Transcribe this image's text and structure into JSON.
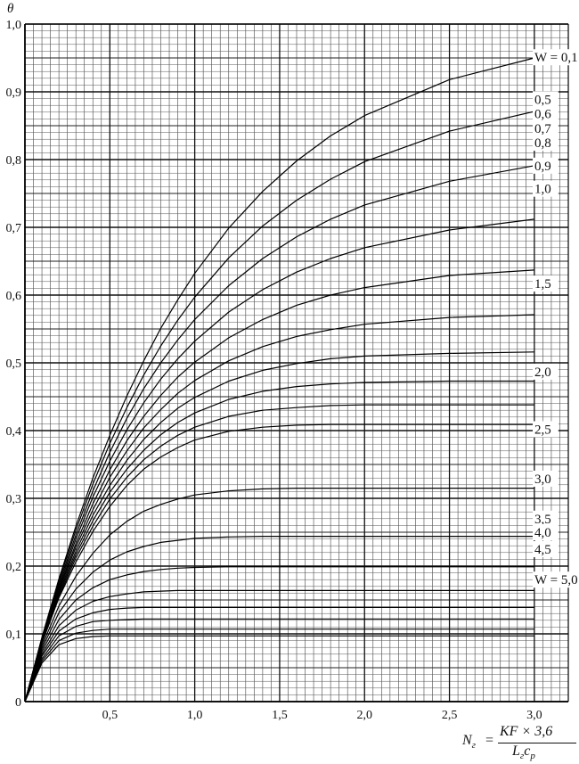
{
  "chart_data": {
    "type": "line",
    "ylabel": "θ",
    "xlabel": {
      "lhs": "N",
      "lhs_sub": "г",
      "equals": "=",
      "numerator": "KF × 3,6",
      "denominator": "L",
      "denominator_sub": "г",
      "denominator_tail": "c",
      "denominator_tail_sub": "p"
    },
    "xlim": [
      0,
      3.2
    ],
    "ylim": [
      0,
      1.0
    ],
    "x_ticks": [
      {
        "value": 0.5,
        "label": "0,5"
      },
      {
        "value": 1.0,
        "label": "1,0"
      },
      {
        "value": 1.5,
        "label": "1,5"
      },
      {
        "value": 2.0,
        "label": "2,0"
      },
      {
        "value": 2.5,
        "label": "2,5"
      },
      {
        "value": 3.0,
        "label": "3,0"
      }
    ],
    "y_ticks": [
      {
        "value": 0,
        "label": "0"
      },
      {
        "value": 0.1,
        "label": "0,1"
      },
      {
        "value": 0.2,
        "label": "0,2"
      },
      {
        "value": 0.3,
        "label": "0,3"
      },
      {
        "value": 0.4,
        "label": "0,4"
      },
      {
        "value": 0.5,
        "label": "0,5"
      },
      {
        "value": 0.6,
        "label": "0,6"
      },
      {
        "value": 0.7,
        "label": "0,7"
      },
      {
        "value": 0.8,
        "label": "0,8"
      },
      {
        "value": 0.9,
        "label": "0,9"
      },
      {
        "value": 1.0,
        "label": "1,0"
      }
    ],
    "grid": true,
    "series": [
      {
        "label": "W = 0,1",
        "label_y": 0.951,
        "x": [
          0,
          0.1,
          0.2,
          0.3,
          0.4,
          0.5,
          0.6,
          0.7,
          0.8,
          0.9,
          1.0,
          1.2,
          1.4,
          1.6,
          1.8,
          2.0,
          2.5,
          3.0
        ],
        "y": [
          0,
          0.095,
          0.181,
          0.259,
          0.33,
          0.393,
          0.451,
          0.503,
          0.551,
          0.593,
          0.632,
          0.699,
          0.753,
          0.798,
          0.835,
          0.865,
          0.918,
          0.95
        ]
      },
      {
        "x": [
          0,
          0.1,
          0.2,
          0.3,
          0.4,
          0.5,
          0.6,
          0.7,
          0.8,
          0.9,
          1.0,
          1.2,
          1.4,
          1.6,
          1.8,
          2.0,
          2.5,
          3.0
        ],
        "y": [
          0,
          0.094,
          0.178,
          0.253,
          0.321,
          0.381,
          0.434,
          0.482,
          0.525,
          0.563,
          0.597,
          0.655,
          0.702,
          0.74,
          0.771,
          0.797,
          0.842,
          0.871
        ]
      },
      {
        "x": [
          0,
          0.1,
          0.2,
          0.3,
          0.4,
          0.5,
          0.6,
          0.7,
          0.8,
          0.9,
          1.0,
          1.2,
          1.4,
          1.6,
          1.8,
          2.0,
          2.5,
          3.0
        ],
        "y": [
          0,
          0.093,
          0.174,
          0.246,
          0.311,
          0.368,
          0.418,
          0.462,
          0.5,
          0.534,
          0.564,
          0.614,
          0.654,
          0.686,
          0.712,
          0.733,
          0.768,
          0.791
        ]
      },
      {
        "x": [
          0,
          0.1,
          0.2,
          0.3,
          0.4,
          0.5,
          0.6,
          0.7,
          0.8,
          0.9,
          1.0,
          1.2,
          1.4,
          1.6,
          1.8,
          2.0,
          2.5,
          3.0
        ],
        "y": [
          0,
          0.092,
          0.17,
          0.24,
          0.302,
          0.355,
          0.401,
          0.441,
          0.476,
          0.506,
          0.532,
          0.575,
          0.608,
          0.634,
          0.654,
          0.67,
          0.696,
          0.712
        ]
      },
      {
        "label": "0,5",
        "label_y": 0.889,
        "x": [
          0,
          0.1,
          0.2,
          0.3,
          0.4,
          0.5,
          0.6,
          0.7,
          0.8,
          0.9,
          1.0,
          1.2,
          1.4,
          1.6,
          1.8,
          2.0,
          2.5,
          3.0
        ],
        "y": [
          0,
          0.091,
          0.167,
          0.233,
          0.292,
          0.342,
          0.385,
          0.421,
          0.452,
          0.479,
          0.501,
          0.537,
          0.564,
          0.585,
          0.6,
          0.611,
          0.629,
          0.637
        ]
      },
      {
        "label": "0,6",
        "label_y": 0.868,
        "x": [
          0,
          0.1,
          0.2,
          0.3,
          0.4,
          0.5,
          0.6,
          0.7,
          0.8,
          0.9,
          1.0,
          1.2,
          1.4,
          1.6,
          1.8,
          2.0,
          2.5,
          3.0
        ],
        "y": [
          0,
          0.09,
          0.164,
          0.228,
          0.283,
          0.331,
          0.37,
          0.404,
          0.431,
          0.455,
          0.474,
          0.503,
          0.524,
          0.539,
          0.549,
          0.557,
          0.567,
          0.571
        ]
      },
      {
        "label": "0,7",
        "label_y": 0.846,
        "x": [
          0,
          0.1,
          0.2,
          0.3,
          0.4,
          0.5,
          0.6,
          0.7,
          0.8,
          0.9,
          1.0,
          1.2,
          1.4,
          1.6,
          1.8,
          2.0,
          2.5,
          3.0
        ],
        "y": [
          0,
          0.089,
          0.161,
          0.222,
          0.275,
          0.319,
          0.356,
          0.387,
          0.412,
          0.433,
          0.449,
          0.473,
          0.489,
          0.499,
          0.506,
          0.51,
          0.514,
          0.516
        ]
      },
      {
        "label": "0,8",
        "label_y": 0.825,
        "x": [
          0,
          0.1,
          0.2,
          0.3,
          0.4,
          0.5,
          0.6,
          0.7,
          0.8,
          0.9,
          1.0,
          1.2,
          1.4,
          1.6,
          1.8,
          2.0,
          2.5,
          3.0
        ],
        "y": [
          0,
          0.088,
          0.158,
          0.217,
          0.267,
          0.309,
          0.343,
          0.371,
          0.394,
          0.412,
          0.426,
          0.446,
          0.458,
          0.465,
          0.469,
          0.471,
          0.473,
          0.473
        ]
      },
      {
        "label": "0,9",
        "label_y": 0.791,
        "x": [
          0,
          0.1,
          0.2,
          0.3,
          0.4,
          0.5,
          0.6,
          0.7,
          0.8,
          0.9,
          1.0,
          1.2,
          1.4,
          1.6,
          1.8,
          2.0,
          2.5,
          3.0
        ],
        "y": [
          0,
          0.087,
          0.155,
          0.212,
          0.259,
          0.299,
          0.331,
          0.357,
          0.377,
          0.393,
          0.405,
          0.421,
          0.43,
          0.434,
          0.437,
          0.438,
          0.438,
          0.438
        ]
      },
      {
        "label": "1,0",
        "label_y": 0.757,
        "x": [
          0,
          0.1,
          0.2,
          0.3,
          0.4,
          0.5,
          0.6,
          0.7,
          0.8,
          0.9,
          1.0,
          1.2,
          1.4,
          1.6,
          1.8,
          2.0,
          2.5,
          3.0
        ],
        "y": [
          0,
          0.086,
          0.153,
          0.206,
          0.251,
          0.288,
          0.319,
          0.343,
          0.361,
          0.375,
          0.386,
          0.399,
          0.405,
          0.408,
          0.409,
          0.409,
          0.409,
          0.409
        ]
      },
      {
        "label": "1,5",
        "label_y": 0.617,
        "x": [
          0,
          0.1,
          0.2,
          0.3,
          0.4,
          0.5,
          0.6,
          0.7,
          0.8,
          0.9,
          1.0,
          1.2,
          1.4,
          1.6,
          1.8,
          2.0,
          2.5,
          3.0
        ],
        "y": [
          0,
          0.082,
          0.141,
          0.185,
          0.219,
          0.246,
          0.266,
          0.281,
          0.291,
          0.299,
          0.305,
          0.311,
          0.314,
          0.315,
          0.315,
          0.315,
          0.315,
          0.315
        ]
      },
      {
        "label": "2,0",
        "label_y": 0.487,
        "x": [
          0,
          0.1,
          0.2,
          0.3,
          0.4,
          0.5,
          0.6,
          0.7,
          0.8,
          0.9,
          1.0,
          1.2,
          1.4,
          1.6,
          1.8,
          2.0,
          2.5,
          3.0
        ],
        "y": [
          0,
          0.078,
          0.131,
          0.166,
          0.191,
          0.209,
          0.221,
          0.229,
          0.235,
          0.238,
          0.241,
          0.243,
          0.244,
          0.244,
          0.244,
          0.244,
          0.244,
          0.244
        ]
      },
      {
        "label": "2,5",
        "label_y": 0.402,
        "x": [
          0,
          0.1,
          0.2,
          0.3,
          0.4,
          0.5,
          0.6,
          0.7,
          0.8,
          0.9,
          1.0,
          1.2,
          1.4,
          1.6,
          1.8,
          2.0,
          2.5,
          3.0
        ],
        "y": [
          0,
          0.074,
          0.121,
          0.15,
          0.168,
          0.18,
          0.187,
          0.192,
          0.195,
          0.197,
          0.198,
          0.199,
          0.199,
          0.199,
          0.199,
          0.199,
          0.199,
          0.199
        ]
      },
      {
        "label": "3,0",
        "label_y": 0.329,
        "x": [
          0,
          0.1,
          0.2,
          0.3,
          0.4,
          0.5,
          0.6,
          0.7,
          0.8,
          0.9,
          1.0,
          1.2,
          1.4,
          1.6,
          1.8,
          2.0,
          2.5,
          3.0
        ],
        "y": [
          0,
          0.07,
          0.112,
          0.135,
          0.148,
          0.155,
          0.159,
          0.162,
          0.163,
          0.164,
          0.164,
          0.164,
          0.164,
          0.164,
          0.164,
          0.164,
          0.164,
          0.164
        ]
      },
      {
        "label": "3,5",
        "label_y": 0.27,
        "x": [
          0,
          0.1,
          0.2,
          0.3,
          0.4,
          0.5,
          0.6,
          0.7,
          0.8,
          0.9,
          1.0,
          1.2,
          1.4,
          1.6,
          1.8,
          2.0,
          2.5,
          3.0
        ],
        "y": [
          0,
          0.067,
          0.104,
          0.122,
          0.131,
          0.136,
          0.138,
          0.139,
          0.139,
          0.139,
          0.139,
          0.139,
          0.139,
          0.139,
          0.139,
          0.139,
          0.139,
          0.139
        ]
      },
      {
        "label": "4,0",
        "label_y": 0.25,
        "x": [
          0,
          0.1,
          0.2,
          0.3,
          0.4,
          0.5,
          0.6,
          0.7,
          0.8,
          0.9,
          1.0,
          1.2,
          1.4,
          1.6,
          1.8,
          2.0,
          2.5,
          3.0
        ],
        "y": [
          0,
          0.063,
          0.097,
          0.111,
          0.118,
          0.12,
          0.121,
          0.122,
          0.122,
          0.122,
          0.122,
          0.122,
          0.122,
          0.122,
          0.122,
          0.122,
          0.122,
          0.122
        ]
      },
      {
        "label": "4,5",
        "label_y": 0.225,
        "x": [
          0,
          0.1,
          0.2,
          0.3,
          0.4,
          0.5,
          0.6,
          0.7,
          0.8,
          0.9,
          1.0,
          1.2,
          1.4,
          1.6,
          1.8,
          2.0,
          2.5,
          3.0
        ],
        "y": [
          0,
          0.06,
          0.09,
          0.101,
          0.105,
          0.107,
          0.107,
          0.107,
          0.107,
          0.107,
          0.107,
          0.107,
          0.107,
          0.107,
          0.107,
          0.107,
          0.107,
          0.107
        ]
      },
      {
        "label": "W = 5,0",
        "label_y": 0.18,
        "x": [
          0,
          0.1,
          0.2,
          0.3,
          0.4,
          0.5,
          0.6,
          0.7,
          0.8,
          0.9,
          1.0,
          1.2,
          1.4,
          1.6,
          1.8,
          2.0,
          2.5,
          3.0
        ],
        "y": [
          0,
          0.057,
          0.084,
          0.093,
          0.096,
          0.097,
          0.097,
          0.097,
          0.097,
          0.097,
          0.097,
          0.097,
          0.097,
          0.097,
          0.097,
          0.097,
          0.097,
          0.097
        ]
      }
    ]
  }
}
